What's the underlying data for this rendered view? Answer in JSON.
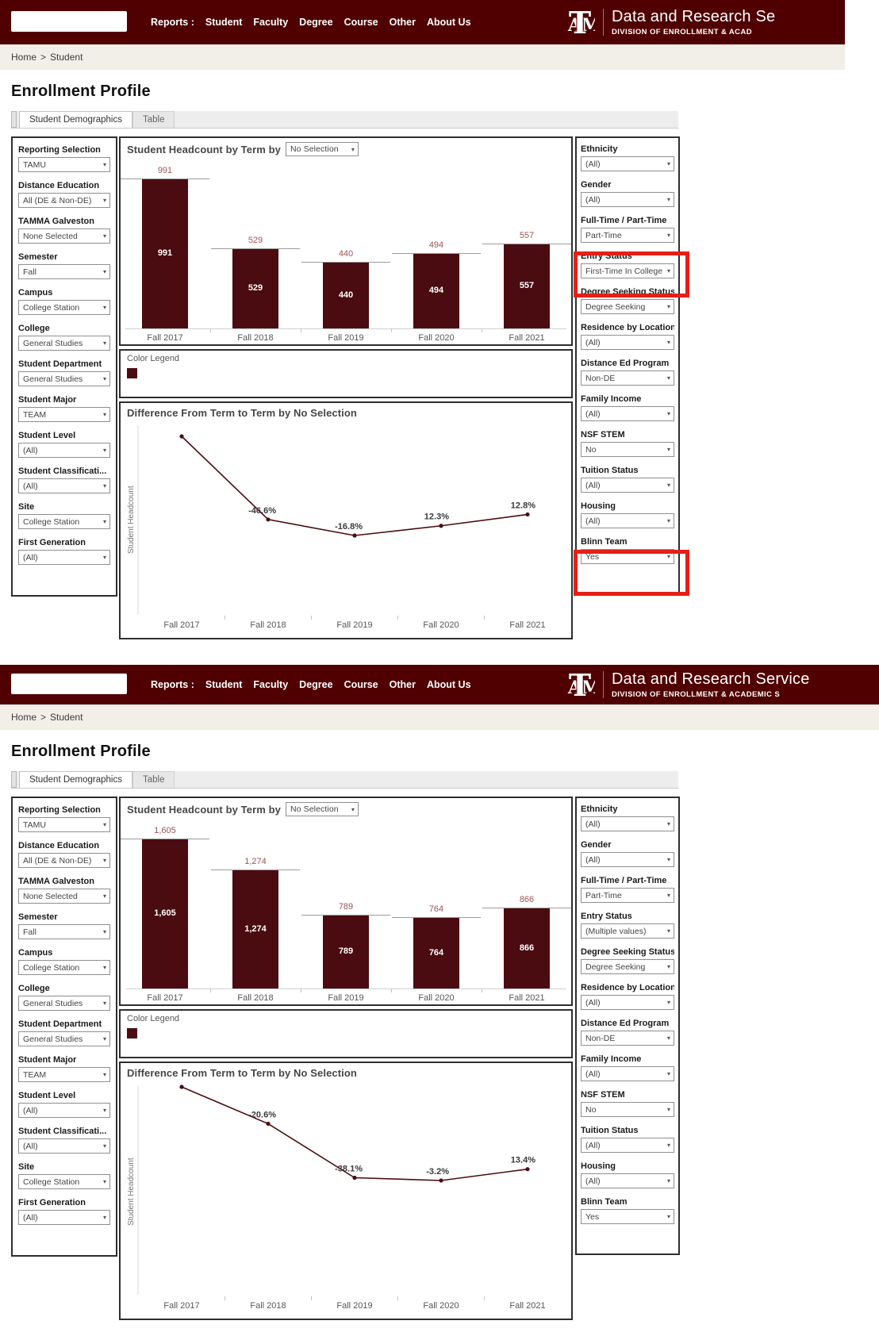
{
  "theme": {
    "navbar_maroon": "#500000",
    "bar_maroon": "#4a0c10",
    "highlight_red": "#e32018",
    "breadcrumb_beige": "#f2efe9",
    "reference_line_gray": "#9a9a9a"
  },
  "icons": {
    "chevron_down": "▾"
  },
  "views": [
    {
      "navbar": {
        "search_value": "",
        "reports_label": "Reports :",
        "links": [
          "Student",
          "Faculty",
          "Degree",
          "Course",
          "Other",
          "About Us"
        ],
        "logo_text": "ATM",
        "brand_line1": "Data and Research Se",
        "brand_line2": "DIVISION OF ENROLLMENT & ACAD"
      },
      "breadcrumb": {
        "home": "Home",
        "separator": ">",
        "current": "Student"
      },
      "page_title": "Enrollment Profile",
      "tabs": [
        {
          "label": "Student Demographics",
          "active": true
        },
        {
          "label": "Table",
          "active": false
        }
      ],
      "left_filters": [
        {
          "label": "Reporting Selection",
          "value": "TAMU"
        },
        {
          "label": "Distance Education",
          "value": "All (DE & Non-DE)"
        },
        {
          "label": "TAMMA Galveston",
          "value": "None Selected"
        },
        {
          "label": "Semester",
          "value": "Fall"
        },
        {
          "label": "Campus",
          "value": "College Station"
        },
        {
          "label": "College",
          "value": "General Studies"
        },
        {
          "label": "Student Department",
          "value": "General Studies"
        },
        {
          "label": "Student Major",
          "value": "TEAM"
        },
        {
          "label": "Student Level",
          "value": "(All)"
        },
        {
          "label": "Student Classificati...",
          "value": "(All)"
        },
        {
          "label": "Site",
          "value": "College Station"
        },
        {
          "label": "First Generation",
          "value": "(All)"
        }
      ],
      "right_filters": [
        {
          "label": "Ethnicity",
          "value": "(All)"
        },
        {
          "label": "Gender",
          "value": "(All)"
        },
        {
          "label": "Full-Time / Part-Time",
          "value": "Part-Time"
        },
        {
          "label": "Entry Status",
          "value": "First-Time In College"
        },
        {
          "label": "Degree Seeking Status",
          "value": "Degree Seeking"
        },
        {
          "label": "Residence by Location",
          "value": "(All)"
        },
        {
          "label": "Distance Ed Program",
          "value": "Non-DE"
        },
        {
          "label": "Family Income",
          "value": "(All)"
        },
        {
          "label": "NSF STEM",
          "value": "No"
        },
        {
          "label": "Tuition Status",
          "value": "(All)"
        },
        {
          "label": "Housing",
          "value": "(All)"
        },
        {
          "label": "Blinn Team",
          "value": "Yes"
        }
      ],
      "highlights": {
        "entry_status": true,
        "blinn_team": true
      },
      "bar_chart": {
        "type": "bar",
        "title": "Student Headcount by Term by",
        "selector_value": "No Selection",
        "categories": [
          "Fall 2017",
          "Fall 2018",
          "Fall 2019",
          "Fall 2020",
          "Fall 2021"
        ],
        "values": [
          991,
          529,
          440,
          494,
          557
        ],
        "labels": [
          "991",
          "529",
          "440",
          "494",
          "557"
        ],
        "color": "#4a0c10"
      },
      "color_legend": {
        "title": "Color Legend",
        "swatch_color": "#4a0c10"
      },
      "line_chart": {
        "type": "line",
        "title": "Difference From Term to Term by No Selection",
        "ylabel": "Student Headcount",
        "categories": [
          "Fall 2017",
          "Fall 2018",
          "Fall 2019",
          "Fall 2020",
          "Fall 2021"
        ],
        "values": [
          991,
          529,
          440,
          494,
          557
        ],
        "point_labels": [
          "",
          "-46.6%",
          "-16.8%",
          "12.3%",
          "12.8%"
        ],
        "color": "#4a0c10"
      }
    },
    {
      "navbar": {
        "search_value": "",
        "reports_label": "Reports :",
        "links": [
          "Student",
          "Faculty",
          "Degree",
          "Course",
          "Other",
          "About Us"
        ],
        "logo_text": "ATM",
        "brand_line1": "Data and Research Service",
        "brand_line2": "DIVISION OF ENROLLMENT & ACADEMIC S"
      },
      "breadcrumb": {
        "home": "Home",
        "separator": ">",
        "current": "Student"
      },
      "page_title": "Enrollment Profile",
      "tabs": [
        {
          "label": "Student Demographics",
          "active": true
        },
        {
          "label": "Table",
          "active": false
        }
      ],
      "left_filters": [
        {
          "label": "Reporting Selection",
          "value": "TAMU"
        },
        {
          "label": "Distance Education",
          "value": "All (DE & Non-DE)"
        },
        {
          "label": "TAMMA Galveston",
          "value": "None Selected"
        },
        {
          "label": "Semester",
          "value": "Fall"
        },
        {
          "label": "Campus",
          "value": "College Station"
        },
        {
          "label": "College",
          "value": "General Studies"
        },
        {
          "label": "Student Department",
          "value": "General Studies"
        },
        {
          "label": "Student Major",
          "value": "TEAM"
        },
        {
          "label": "Student Level",
          "value": "(All)"
        },
        {
          "label": "Student Classificati...",
          "value": "(All)"
        },
        {
          "label": "Site",
          "value": "College Station"
        },
        {
          "label": "First Generation",
          "value": "(All)"
        }
      ],
      "right_filters": [
        {
          "label": "Ethnicity",
          "value": "(All)"
        },
        {
          "label": "Gender",
          "value": "(All)"
        },
        {
          "label": "Full-Time / Part-Time",
          "value": "Part-Time"
        },
        {
          "label": "Entry Status",
          "value": "(Multiple values)"
        },
        {
          "label": "Degree Seeking Status",
          "value": "Degree Seeking"
        },
        {
          "label": "Residence by Location",
          "value": "(All)"
        },
        {
          "label": "Distance Ed Program",
          "value": "Non-DE"
        },
        {
          "label": "Family Income",
          "value": "(All)"
        },
        {
          "label": "NSF STEM",
          "value": "No"
        },
        {
          "label": "Tuition Status",
          "value": "(All)"
        },
        {
          "label": "Housing",
          "value": "(All)"
        },
        {
          "label": "Blinn Team",
          "value": "Yes"
        }
      ],
      "highlights": {
        "entry_status": false,
        "blinn_team": false
      },
      "bar_chart": {
        "type": "bar",
        "title": "Student Headcount by Term by",
        "selector_value": "No Selection",
        "categories": [
          "Fall 2017",
          "Fall 2018",
          "Fall 2019",
          "Fall 2020",
          "Fall 2021"
        ],
        "values": [
          1605,
          1274,
          789,
          764,
          866
        ],
        "labels": [
          "1,605",
          "1,274",
          "789",
          "764",
          "866"
        ],
        "color": "#4a0c10"
      },
      "color_legend": {
        "title": "Color Legend",
        "swatch_color": "#4a0c10"
      },
      "line_chart": {
        "type": "line",
        "title": "Difference From Term to Term by No Selection",
        "ylabel": "Student Headcount",
        "categories": [
          "Fall 2017",
          "Fall 2018",
          "Fall 2019",
          "Fall 2020",
          "Fall 2021"
        ],
        "values": [
          1605,
          1274,
          789,
          764,
          866
        ],
        "point_labels": [
          "",
          "-20.6%",
          "-38.1%",
          "-3.2%",
          "13.4%"
        ],
        "color": "#4a0c10"
      }
    }
  ]
}
